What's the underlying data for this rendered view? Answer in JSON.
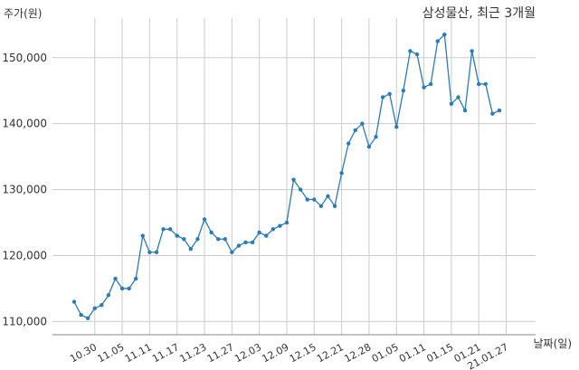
{
  "chart_data": {
    "type": "line",
    "title": "삼성물산, 최근 3개월",
    "xlabel": "날짜(일)",
    "ylabel": "주가(원)",
    "ylim": [
      108000,
      156000
    ],
    "yticks": [
      110000,
      120000,
      130000,
      140000,
      150000
    ],
    "ytick_labels": [
      "110,000",
      "120,000",
      "130,000",
      "140,000",
      "150,000"
    ],
    "xtick_labels": [
      "10.30",
      "11.05",
      "11.11",
      "11.17",
      "11.23",
      "11.27",
      "12.03",
      "12.09",
      "12.15",
      "12.21",
      "12.28",
      "01.05",
      "01.11",
      "01.15",
      "01.21",
      "21.01.27"
    ],
    "xtick_index": [
      3,
      7,
      11,
      15,
      19,
      23,
      27,
      31,
      35,
      39,
      43,
      47,
      51,
      55,
      59,
      63
    ],
    "grid": true,
    "colors": {
      "line": "#2b7bb9",
      "grid": "#cccccc",
      "axis": "#888888",
      "text": "#333333"
    },
    "series": [
      {
        "values": [
          113000,
          111000,
          110500,
          112000,
          112500,
          114000,
          116500,
          115000,
          115000,
          116500,
          123000,
          120500,
          120500,
          124000,
          124000,
          123000,
          122500,
          121000,
          122500,
          125500,
          123500,
          122500,
          122500,
          120500,
          121500,
          122000,
          122000,
          123500,
          123000,
          124000,
          124500,
          125000,
          131500,
          130000,
          128500,
          128500,
          127500,
          129000,
          127500,
          132500,
          137000,
          139000,
          140000,
          136500,
          138000,
          144000,
          144500,
          139500,
          145000,
          151000,
          150500,
          145500,
          146000,
          152500,
          153500,
          143000,
          144000,
          142000,
          151000,
          146000,
          146000,
          141500,
          142000
        ]
      }
    ]
  }
}
